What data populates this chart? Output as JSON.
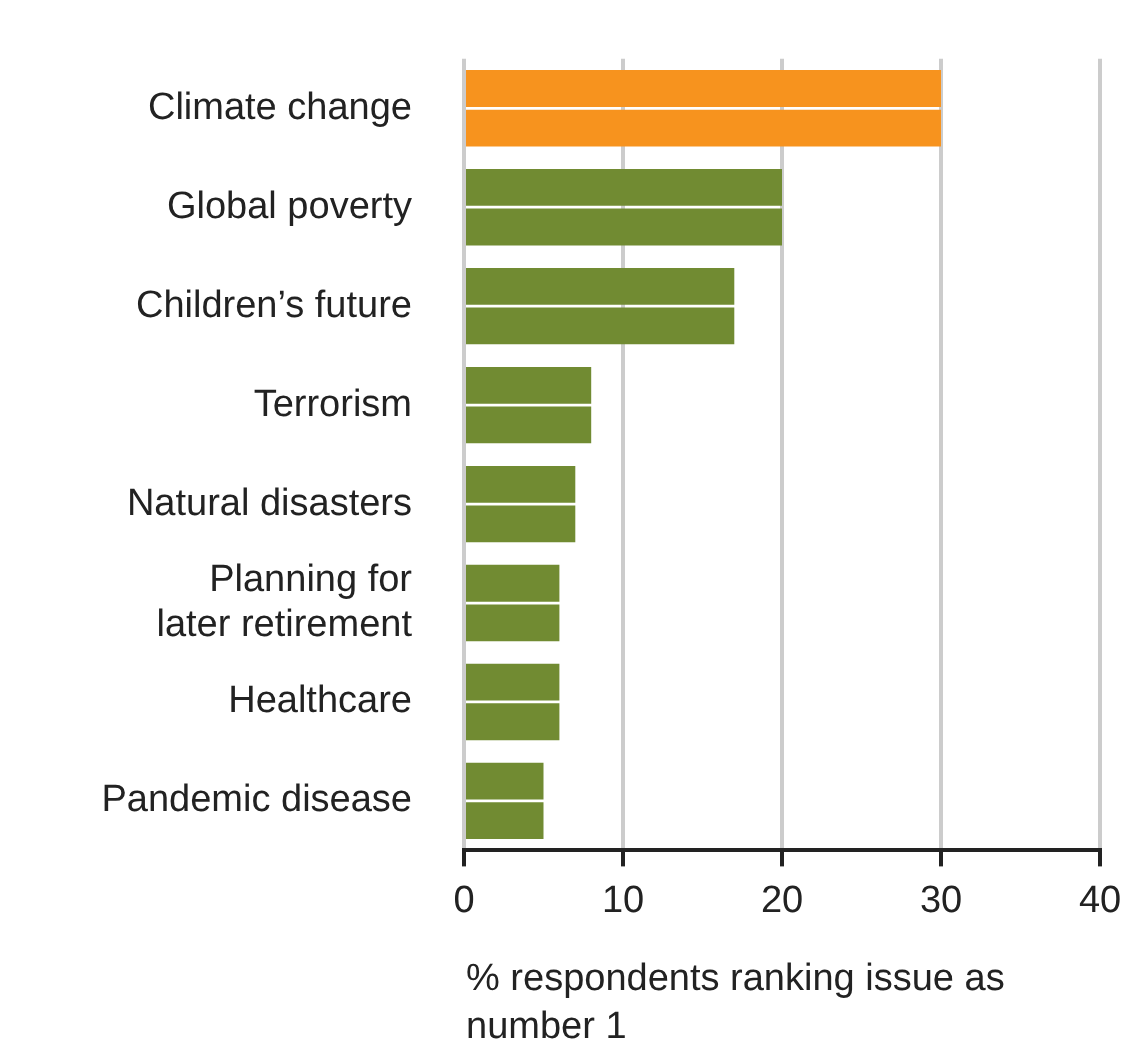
{
  "chart_data": {
    "type": "bar",
    "orientation": "horizontal",
    "xlabel": "% respondents ranking issue as number 1",
    "categories": [
      "Climate change",
      "Global poverty",
      "Children’s future",
      "Terrorism",
      "Natural disasters",
      "Planning for\nlater retirement",
      "Healthcare",
      "Pandemic disease"
    ],
    "series": [
      {
        "colors": [
          "#f7931e",
          "#718b32",
          "#718b32",
          "#718b32",
          "#718b32",
          "#718b32",
          "#718b32",
          "#718b32"
        ],
        "values": [
          30,
          20,
          17,
          8,
          7,
          6,
          6,
          5
        ]
      },
      {
        "colors": [
          "#f7931e",
          "#718b32",
          "#718b32",
          "#718b32",
          "#718b32",
          "#718b32",
          "#718b32",
          "#718b32"
        ],
        "values": [
          30,
          20,
          17,
          8,
          7,
          6,
          6,
          5
        ]
      }
    ],
    "xlim": [
      0,
      40
    ],
    "xticks": [
      0,
      10,
      20,
      30,
      40
    ],
    "grid": "x",
    "legend": false
  }
}
